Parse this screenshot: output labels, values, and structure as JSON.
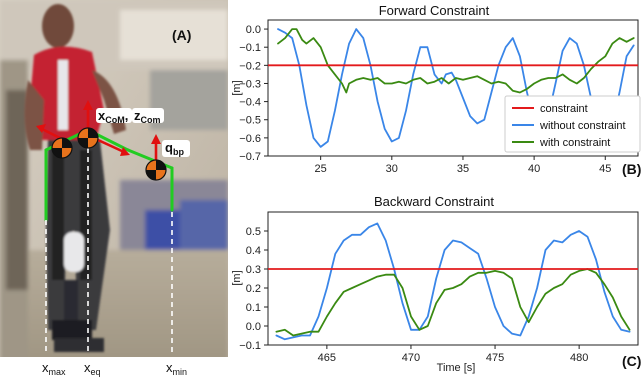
{
  "photo": {
    "panel_label": "(A)",
    "labels": {
      "xcom": "x",
      "xcom_sub": "CoM",
      "zcom": "z",
      "zcom_sub": "Com",
      "qbp": "q",
      "qbp_sub": "bp",
      "xmax": "x",
      "xmax_sub": "max",
      "xeq": "x",
      "xeq_sub": "eq",
      "xmin": "x",
      "xmin_sub": "min"
    },
    "colors": {
      "skeleton": "#22cc22",
      "com_arrow": "#e01010",
      "marker": "#e8731c"
    }
  },
  "legend": {
    "items": [
      {
        "label": "constraint",
        "color": "#e31a1c"
      },
      {
        "label": "without constraint",
        "color": "#3a86e8"
      },
      {
        "label": "with constraint",
        "color": "#3a8a12"
      }
    ]
  },
  "shared": {
    "xlabel": "Time [s]"
  },
  "chart_data": [
    {
      "type": "line",
      "panel": "(B)",
      "title": "Forward Constraint",
      "ylabel": "[m]",
      "xlim": [
        21.3,
        47.3
      ],
      "ylim": [
        -0.7,
        0.05
      ],
      "xticks": [
        25,
        30,
        35,
        40,
        45
      ],
      "yticks": [
        0.0,
        -0.1,
        -0.2,
        -0.3,
        -0.4,
        -0.5,
        -0.6,
        -0.7
      ],
      "ytick_labels": [
        "0.0",
        "−0.1",
        "−0.2",
        "−0.3",
        "−0.4",
        "−0.5",
        "−0.6",
        "−0.7"
      ],
      "constraint": -0.2,
      "series": [
        {
          "name": "without constraint",
          "color": "#3a86e8",
          "points": [
            [
              22,
              0.0
            ],
            [
              22.5,
              -0.02
            ],
            [
              23,
              -0.05
            ],
            [
              23.5,
              -0.2
            ],
            [
              24,
              -0.42
            ],
            [
              24.5,
              -0.6
            ],
            [
              25,
              -0.65
            ],
            [
              25.5,
              -0.62
            ],
            [
              26,
              -0.45
            ],
            [
              26.5,
              -0.25
            ],
            [
              27,
              -0.08
            ],
            [
              27.5,
              0.0
            ],
            [
              28,
              -0.05
            ],
            [
              28.5,
              -0.2
            ],
            [
              29,
              -0.4
            ],
            [
              29.5,
              -0.55
            ],
            [
              30,
              -0.62
            ],
            [
              30.5,
              -0.6
            ],
            [
              31,
              -0.45
            ],
            [
              31.5,
              -0.25
            ],
            [
              32,
              -0.1
            ],
            [
              32.5,
              -0.1
            ],
            [
              33,
              -0.25
            ],
            [
              33.5,
              -0.3
            ],
            [
              33.8,
              -0.25
            ],
            [
              34.2,
              -0.24
            ],
            [
              34.5,
              -0.28
            ],
            [
              35,
              -0.38
            ],
            [
              35.5,
              -0.48
            ],
            [
              36,
              -0.52
            ],
            [
              36.5,
              -0.5
            ],
            [
              37,
              -0.35
            ],
            [
              37.5,
              -0.2
            ],
            [
              38,
              -0.1
            ],
            [
              38.5,
              -0.05
            ],
            [
              39,
              -0.15
            ],
            [
              39.5,
              -0.35
            ],
            [
              40,
              -0.5
            ],
            [
              40.5,
              -0.55
            ],
            [
              41,
              -0.48
            ],
            [
              41.5,
              -0.3
            ],
            [
              42,
              -0.12
            ],
            [
              42.5,
              -0.05
            ],
            [
              43,
              -0.08
            ],
            [
              43.5,
              -0.2
            ],
            [
              44,
              -0.38
            ],
            [
              44.5,
              -0.5
            ],
            [
              45,
              -0.55
            ],
            [
              45.5,
              -0.52
            ],
            [
              46,
              -0.35
            ],
            [
              46.5,
              -0.15
            ],
            [
              47,
              -0.09
            ]
          ]
        },
        {
          "name": "with constraint",
          "color": "#3a8a12",
          "points": [
            [
              22,
              -0.08
            ],
            [
              22.5,
              -0.05
            ],
            [
              23,
              0.0
            ],
            [
              23.3,
              0.0
            ],
            [
              23.7,
              -0.06
            ],
            [
              24,
              -0.08
            ],
            [
              24.5,
              -0.05
            ],
            [
              25,
              -0.1
            ],
            [
              25.5,
              -0.2
            ],
            [
              26,
              -0.25
            ],
            [
              26.5,
              -0.3
            ],
            [
              26.8,
              -0.35
            ],
            [
              27,
              -0.3
            ],
            [
              27.5,
              -0.28
            ],
            [
              28,
              -0.27
            ],
            [
              28.5,
              -0.28
            ],
            [
              29,
              -0.27
            ],
            [
              29.5,
              -0.3
            ],
            [
              30,
              -0.3
            ],
            [
              30.5,
              -0.29
            ],
            [
              31,
              -0.3
            ],
            [
              31.5,
              -0.28
            ],
            [
              32,
              -0.27
            ],
            [
              32.5,
              -0.3
            ],
            [
              33,
              -0.29
            ],
            [
              33.5,
              -0.27
            ],
            [
              34,
              -0.3
            ],
            [
              34.5,
              -0.27
            ],
            [
              35,
              -0.28
            ],
            [
              35.5,
              -0.27
            ],
            [
              36,
              -0.26
            ],
            [
              36.5,
              -0.28
            ],
            [
              37,
              -0.3
            ],
            [
              37.5,
              -0.29
            ],
            [
              38,
              -0.3
            ],
            [
              38.5,
              -0.34
            ],
            [
              39,
              -0.35
            ],
            [
              39.5,
              -0.33
            ],
            [
              40,
              -0.3
            ],
            [
              40.5,
              -0.28
            ],
            [
              41,
              -0.27
            ],
            [
              41.5,
              -0.27
            ],
            [
              42,
              -0.25
            ],
            [
              42.5,
              -0.28
            ],
            [
              43,
              -0.3
            ],
            [
              43.5,
              -0.27
            ],
            [
              44,
              -0.22
            ],
            [
              44.5,
              -0.18
            ],
            [
              45,
              -0.15
            ],
            [
              45.5,
              -0.08
            ],
            [
              46,
              -0.05
            ],
            [
              46.5,
              -0.07
            ],
            [
              47,
              -0.05
            ]
          ]
        }
      ]
    },
    {
      "type": "line",
      "panel": "(C)",
      "title": "Backward Constraint",
      "ylabel": "[m]",
      "xlim": [
        461.5,
        483.5
      ],
      "ylim": [
        -0.1,
        0.6
      ],
      "xticks": [
        465,
        470,
        475,
        480
      ],
      "yticks": [
        0.5,
        0.4,
        0.3,
        0.2,
        0.1,
        0.0,
        -0.1
      ],
      "ytick_labels": [
        "0.5",
        "0.4",
        "0.3",
        "0.2",
        "0.1",
        "0.0",
        "−0.1"
      ],
      "constraint": 0.3,
      "series": [
        {
          "name": "without constraint",
          "color": "#3a86e8",
          "points": [
            [
              462,
              -0.05
            ],
            [
              462.5,
              -0.07
            ],
            [
              463,
              -0.06
            ],
            [
              463.5,
              -0.05
            ],
            [
              464,
              -0.05
            ],
            [
              464.5,
              0.05
            ],
            [
              465,
              0.2
            ],
            [
              465.5,
              0.38
            ],
            [
              466,
              0.45
            ],
            [
              466.5,
              0.48
            ],
            [
              467,
              0.48
            ],
            [
              467.5,
              0.52
            ],
            [
              468,
              0.54
            ],
            [
              468.5,
              0.45
            ],
            [
              469,
              0.3
            ],
            [
              469.5,
              0.12
            ],
            [
              470,
              -0.02
            ],
            [
              470.5,
              -0.02
            ],
            [
              471,
              0.05
            ],
            [
              471.5,
              0.25
            ],
            [
              472,
              0.4
            ],
            [
              472.5,
              0.45
            ],
            [
              473,
              0.44
            ],
            [
              473.5,
              0.41
            ],
            [
              474,
              0.38
            ],
            [
              474.5,
              0.25
            ],
            [
              475,
              0.1
            ],
            [
              475.5,
              0.0
            ],
            [
              476,
              -0.04
            ],
            [
              476.5,
              -0.05
            ],
            [
              477,
              0.05
            ],
            [
              477.5,
              0.2
            ],
            [
              478,
              0.4
            ],
            [
              478.5,
              0.45
            ],
            [
              479,
              0.44
            ],
            [
              479.5,
              0.48
            ],
            [
              480,
              0.5
            ],
            [
              480.5,
              0.47
            ],
            [
              481,
              0.35
            ],
            [
              481.5,
              0.18
            ],
            [
              482,
              0.05
            ],
            [
              482.5,
              -0.02
            ],
            [
              483,
              -0.03
            ]
          ]
        },
        {
          "name": "with constraint",
          "color": "#3a8a12",
          "points": [
            [
              462,
              -0.03
            ],
            [
              462.5,
              -0.02
            ],
            [
              463,
              -0.05
            ],
            [
              463.5,
              -0.04
            ],
            [
              464,
              -0.03
            ],
            [
              464.5,
              -0.03
            ],
            [
              465,
              0.05
            ],
            [
              465.5,
              0.12
            ],
            [
              466,
              0.18
            ],
            [
              466.5,
              0.2
            ],
            [
              467,
              0.22
            ],
            [
              467.5,
              0.24
            ],
            [
              468,
              0.26
            ],
            [
              468.5,
              0.27
            ],
            [
              469,
              0.27
            ],
            [
              469.5,
              0.2
            ],
            [
              470,
              0.05
            ],
            [
              470.5,
              -0.02
            ],
            [
              471,
              0.0
            ],
            [
              471.5,
              0.12
            ],
            [
              472,
              0.19
            ],
            [
              472.5,
              0.2
            ],
            [
              473,
              0.22
            ],
            [
              473.5,
              0.26
            ],
            [
              474,
              0.28
            ],
            [
              474.5,
              0.28
            ],
            [
              475,
              0.29
            ],
            [
              475.5,
              0.28
            ],
            [
              476,
              0.25
            ],
            [
              476.5,
              0.1
            ],
            [
              477,
              0.02
            ],
            [
              477.5,
              0.1
            ],
            [
              478,
              0.17
            ],
            [
              478.5,
              0.2
            ],
            [
              479,
              0.22
            ],
            [
              479.5,
              0.27
            ],
            [
              480,
              0.29
            ],
            [
              480.5,
              0.3
            ],
            [
              481,
              0.28
            ],
            [
              481.5,
              0.22
            ],
            [
              482,
              0.15
            ],
            [
              482.5,
              0.05
            ],
            [
              483,
              -0.02
            ]
          ]
        }
      ]
    }
  ]
}
